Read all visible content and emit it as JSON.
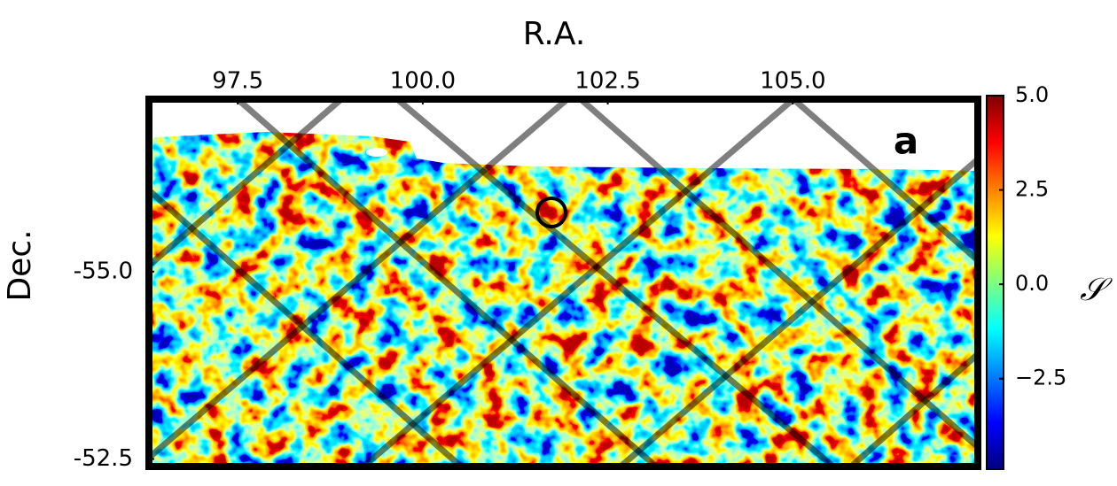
{
  "chart_data": {
    "type": "heatmap",
    "x_label": "R.A.",
    "y_label": "Dec.",
    "panel_label": "a",
    "xlim": [
      96.3,
      107.5
    ],
    "xticks": [
      97.5,
      {
        "value": 100,
        "label": "100.0"
      },
      102.5,
      {
        "value": 105,
        "label": "105.0"
      }
    ],
    "ylim": [
      -52.4,
      -57.3
    ],
    "yticks": [
      {
        "value": -55,
        "label": "-55.0"
      },
      -52.5
    ],
    "colormap": "jet",
    "colorbar": {
      "label": "𝒮",
      "lim": [
        -4.9,
        5.0
      ],
      "ticks": [
        {
          "value": 5,
          "label": "5.0"
        },
        2.5,
        {
          "value": 0,
          "label": "0.0"
        },
        {
          "value": -2.5,
          "label": "−2.5"
        }
      ]
    }
  }
}
